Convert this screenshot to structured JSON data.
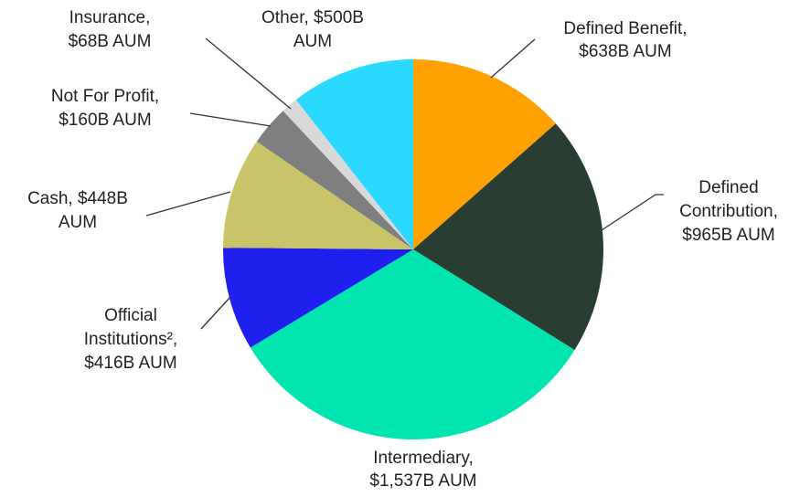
{
  "chart_data": {
    "type": "pie",
    "values": [
      638,
      965,
      1537,
      416,
      448,
      160,
      68,
      500
    ],
    "value_labels": [
      [
        "Defined Benefit,",
        "$638B AUM"
      ],
      [
        "Defined",
        "Contribution,",
        "$965B AUM"
      ],
      [
        "Intermediary,",
        "$1,537B AUM"
      ],
      [
        "Official",
        "Institutions²,",
        "$416B AUM"
      ],
      [
        "Cash, $448B",
        "AUM"
      ],
      [
        "Not For Profit,",
        "$160B AUM"
      ],
      [
        "Insurance,",
        "$68B AUM"
      ],
      [
        "Other, $500B",
        "AUM"
      ]
    ],
    "colors": [
      "#ffa100",
      "#2a3d33",
      "#00e5b0",
      "#2020ee",
      "#c9c36a",
      "#7f7f7f",
      "#d9d9d9",
      "#29d9ff"
    ],
    "start_angle": 0,
    "direction": "clockwise"
  }
}
